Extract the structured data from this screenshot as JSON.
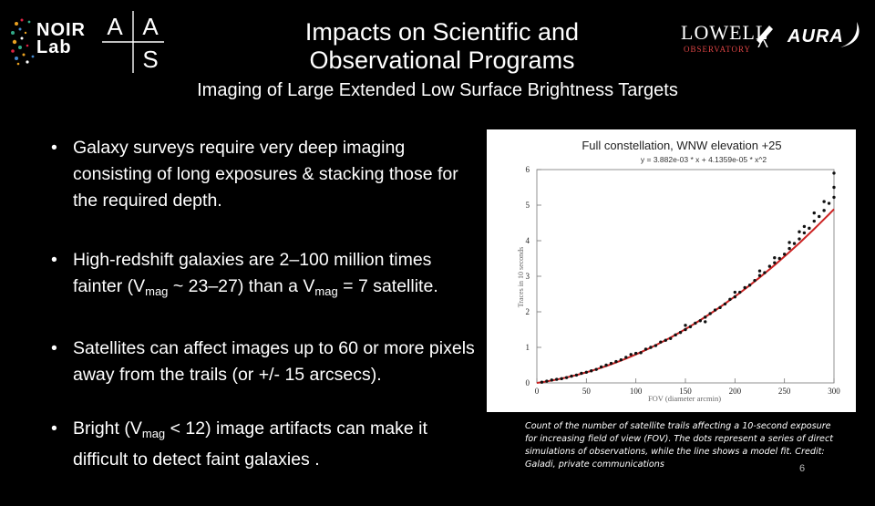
{
  "logos": {
    "noir": {
      "line1": "NOIR",
      "line2": "Lab"
    },
    "aas": {
      "a1": "A",
      "a2": "A",
      "s": "S"
    },
    "lowell": {
      "word": "LOWELL",
      "sub": "OBSERVATORY"
    },
    "aura": {
      "word": "AURA"
    }
  },
  "slide": {
    "title_line1": "Impacts on Scientific and",
    "title_line2": "Observational Programs",
    "subtitle": "Imaging of Large Extended Low Surface Brightness Targets",
    "page_number": "6"
  },
  "bullets": {
    "b1": "Galaxy surveys require very deep imaging consisting of long exposures & stacking those for the required depth.",
    "b2_pre": "High-redshift galaxies are 2–100 million times fainter (V",
    "b2_sub1": "mag",
    "b2_mid": " ~ 23–27) than a V",
    "b2_sub2": "mag",
    "b2_post": " = 7 satellite.",
    "b3": "Satellites can affect images up to 60 or more pixels away from the trails (or +/- 15 arcsecs).",
    "b4_pre": "Bright (V",
    "b4_sub": "mag",
    "b4_post": " < 12) image artifacts can make it difficult to detect faint galaxies ."
  },
  "caption": "Count of the number of satellite trails affecting a 10-second exposure for increasing field of view (FOV). The dots represent a series of direct simulations of observations, while the line shows a model fit. Credit: Galadi, private communications",
  "colors": {
    "background": "#000000",
    "fit_line": "#cc2222",
    "points": "#111111"
  },
  "chart_data": {
    "type": "scatter",
    "title": "Full constellation, WNW elevation +25",
    "equation": "y = 3.882e-03 * x + 4.1359e-05 * x^2",
    "xlabel": "FOV (diameter arcmin)",
    "ylabel": "Traces in 10 seconds",
    "xlim": [
      0,
      300
    ],
    "ylim": [
      0,
      6
    ],
    "x_tick_labels": [
      "0",
      "50",
      "100",
      "150",
      "200",
      "250",
      "300"
    ],
    "y_tick_labels": [
      "0",
      "1",
      "2",
      "3",
      "4",
      "5",
      "6"
    ],
    "fit": {
      "a": 0.003882,
      "b": 4.1359e-05
    },
    "points": [
      [
        5,
        0.02
      ],
      [
        10,
        0.05
      ],
      [
        15,
        0.08
      ],
      [
        20,
        0.1
      ],
      [
        25,
        0.12
      ],
      [
        30,
        0.15
      ],
      [
        35,
        0.19
      ],
      [
        40,
        0.22
      ],
      [
        45,
        0.27
      ],
      [
        50,
        0.3
      ],
      [
        55,
        0.34
      ],
      [
        60,
        0.38
      ],
      [
        65,
        0.45
      ],
      [
        70,
        0.5
      ],
      [
        75,
        0.55
      ],
      [
        80,
        0.6
      ],
      [
        85,
        0.65
      ],
      [
        90,
        0.72
      ],
      [
        95,
        0.8
      ],
      [
        100,
        0.83
      ],
      [
        105,
        0.85
      ],
      [
        110,
        0.95
      ],
      [
        115,
        1.0
      ],
      [
        120,
        1.05
      ],
      [
        125,
        1.15
      ],
      [
        130,
        1.2
      ],
      [
        135,
        1.25
      ],
      [
        140,
        1.35
      ],
      [
        145,
        1.42
      ],
      [
        150,
        1.5
      ],
      [
        155,
        1.58
      ],
      [
        160,
        1.68
      ],
      [
        165,
        1.75
      ],
      [
        170,
        1.85
      ],
      [
        175,
        1.95
      ],
      [
        180,
        2.05
      ],
      [
        185,
        2.12
      ],
      [
        190,
        2.22
      ],
      [
        195,
        2.35
      ],
      [
        200,
        2.42
      ],
      [
        205,
        2.55
      ],
      [
        210,
        2.68
      ],
      [
        215,
        2.75
      ],
      [
        220,
        2.88
      ],
      [
        225,
        3.02
      ],
      [
        230,
        3.1
      ],
      [
        235,
        3.28
      ],
      [
        240,
        3.38
      ],
      [
        245,
        3.5
      ],
      [
        250,
        3.62
      ],
      [
        255,
        3.78
      ],
      [
        260,
        3.92
      ],
      [
        265,
        4.05
      ],
      [
        270,
        4.22
      ],
      [
        275,
        4.35
      ],
      [
        280,
        4.55
      ],
      [
        285,
        4.68
      ],
      [
        290,
        4.85
      ],
      [
        295,
        5.05
      ],
      [
        300,
        5.22
      ],
      [
        150,
        1.62
      ],
      [
        170,
        1.72
      ],
      [
        200,
        2.55
      ],
      [
        225,
        3.15
      ],
      [
        240,
        3.52
      ],
      [
        255,
        3.95
      ],
      [
        265,
        4.25
      ],
      [
        270,
        4.4
      ],
      [
        280,
        4.78
      ],
      [
        290,
        5.1
      ],
      [
        300,
        5.5
      ],
      [
        300,
        5.9
      ]
    ]
  }
}
